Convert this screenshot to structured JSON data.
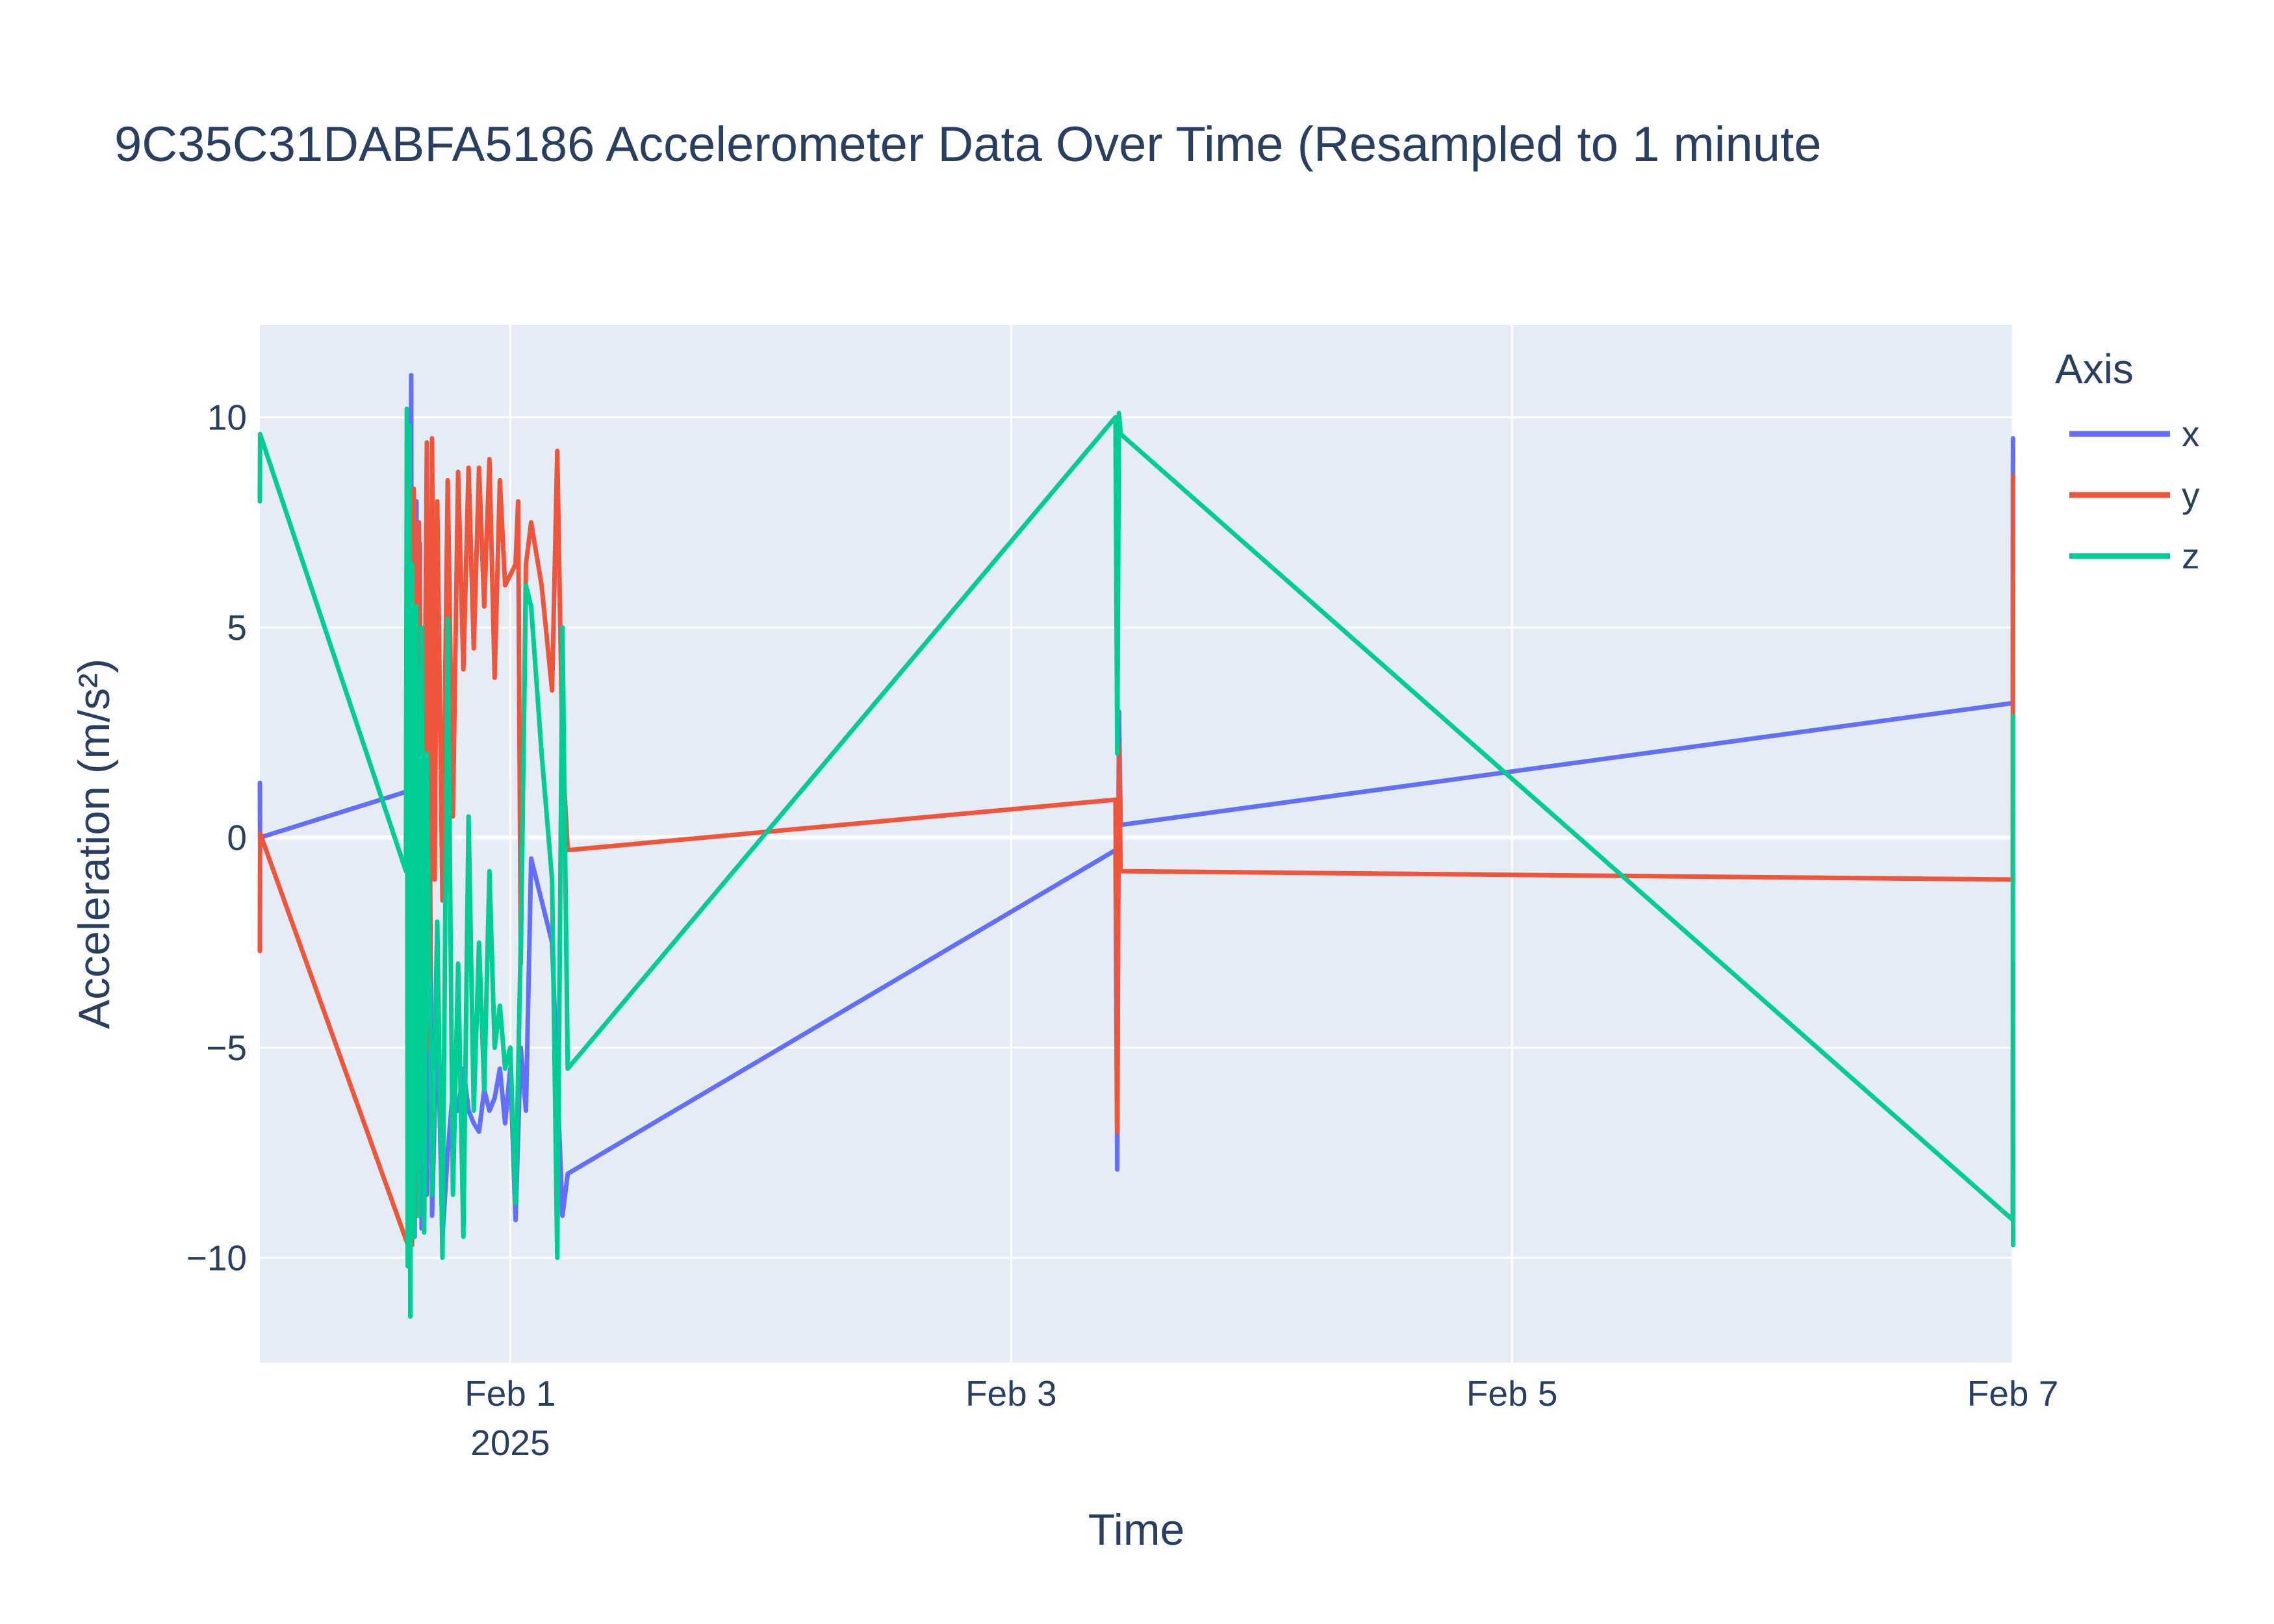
{
  "chart_data": {
    "type": "line",
    "title": "9C35C31DABFA5186 Accelerometer Data Over Time (Resampled to 1 minute",
    "xlabel": "Time",
    "ylabel": "Acceleration (m/s²)",
    "xlim": [
      "2025-01-31T00:00",
      "2025-02-07T00:00"
    ],
    "ylim": [
      -12.5,
      12.2
    ],
    "grid": true,
    "plot_background": "#e5ecf6",
    "x_ticks": [
      {
        "value": "2025-02-01T00:00",
        "label": "Feb 1",
        "sublabel": "2025"
      },
      {
        "value": "2025-02-03T00:00",
        "label": "Feb 3",
        "sublabel": ""
      },
      {
        "value": "2025-02-05T00:00",
        "label": "Feb 5",
        "sublabel": ""
      },
      {
        "value": "2025-02-07T00:00",
        "label": "Feb 7",
        "sublabel": ""
      }
    ],
    "y_ticks": [
      {
        "value": 10,
        "label": "10"
      },
      {
        "value": 5,
        "label": "5"
      },
      {
        "value": 0,
        "label": "0"
      },
      {
        "value": -5,
        "label": "−5"
      },
      {
        "value": -10,
        "label": "−10"
      }
    ],
    "legend": {
      "title": "Axis",
      "position": "right"
    },
    "series": [
      {
        "name": "x",
        "color": "#636efa",
        "points": [
          [
            "2025-01-31T00:00",
            1.3
          ],
          [
            "2025-01-31T00:01",
            0.0
          ],
          [
            "2025-01-31T14:10",
            1.1
          ],
          [
            "2025-01-31T14:15",
            8.2
          ],
          [
            "2025-01-31T14:20",
            -9.5
          ],
          [
            "2025-01-31T14:30",
            11.0
          ],
          [
            "2025-01-31T14:35",
            -9.0
          ],
          [
            "2025-01-31T14:40",
            6.0
          ],
          [
            "2025-01-31T14:50",
            -9.5
          ],
          [
            "2025-01-31T15:00",
            8.0
          ],
          [
            "2025-01-31T15:10",
            -9.0
          ],
          [
            "2025-01-31T15:20",
            7.0
          ],
          [
            "2025-01-31T15:30",
            -9.3
          ],
          [
            "2025-01-31T15:45",
            4.0
          ],
          [
            "2025-01-31T16:00",
            -8.5
          ],
          [
            "2025-01-31T16:15",
            2.0
          ],
          [
            "2025-01-31T16:30",
            -9.0
          ],
          [
            "2025-01-31T17:00",
            -4.0
          ],
          [
            "2025-01-31T17:30",
            -9.5
          ],
          [
            "2025-01-31T18:00",
            -7.5
          ],
          [
            "2025-01-31T18:30",
            -6.0
          ],
          [
            "2025-01-31T19:00",
            -6.5
          ],
          [
            "2025-01-31T19:30",
            -5.5
          ],
          [
            "2025-01-31T20:00",
            -6.5
          ],
          [
            "2025-01-31T20:30",
            -6.8
          ],
          [
            "2025-01-31T21:00",
            -7.0
          ],
          [
            "2025-01-31T21:30",
            -6.0
          ],
          [
            "2025-01-31T22:00",
            -6.5
          ],
          [
            "2025-01-31T22:30",
            -6.2
          ],
          [
            "2025-01-31T23:00",
            -5.5
          ],
          [
            "2025-01-31T23:30",
            -6.8
          ],
          [
            "2025-02-01T00:00",
            -5.5
          ],
          [
            "2025-02-01T00:30",
            -9.1
          ],
          [
            "2025-02-01T01:00",
            -5.0
          ],
          [
            "2025-02-01T01:30",
            -6.5
          ],
          [
            "2025-02-01T02:00",
            -0.5
          ],
          [
            "2025-02-01T03:00",
            -1.5
          ],
          [
            "2025-02-01T04:00",
            -2.5
          ],
          [
            "2025-02-01T05:00",
            -9.0
          ],
          [
            "2025-02-01T05:30",
            -8.0
          ],
          [
            "2025-02-03T10:00",
            -0.3
          ],
          [
            "2025-02-03T10:10",
            -7.9
          ],
          [
            "2025-02-03T10:20",
            3.0
          ],
          [
            "2025-02-03T10:30",
            0.3
          ],
          [
            "2025-02-07T00:00",
            3.2
          ],
          [
            "2025-02-07T00:01",
            9.5
          ]
        ]
      },
      {
        "name": "y",
        "color": "#ef553b",
        "points": [
          [
            "2025-01-31T00:00",
            -2.7
          ],
          [
            "2025-01-31T00:01",
            0.1
          ],
          [
            "2025-01-31T14:20",
            -9.8
          ],
          [
            "2025-01-31T14:25",
            8.0
          ],
          [
            "2025-01-31T14:35",
            -9.7
          ],
          [
            "2025-01-31T14:45",
            8.3
          ],
          [
            "2025-01-31T15:00",
            -9.0
          ],
          [
            "2025-01-31T15:15",
            7.5
          ],
          [
            "2025-01-31T15:30",
            -7.0
          ],
          [
            "2025-01-31T16:00",
            9.4
          ],
          [
            "2025-01-31T16:15",
            -5.0
          ],
          [
            "2025-01-31T16:30",
            9.5
          ],
          [
            "2025-01-31T16:45",
            -1.0
          ],
          [
            "2025-01-31T17:00",
            8.0
          ],
          [
            "2025-01-31T17:30",
            -1.5
          ],
          [
            "2025-01-31T18:00",
            8.5
          ],
          [
            "2025-01-31T18:30",
            0.5
          ],
          [
            "2025-01-31T19:00",
            8.7
          ],
          [
            "2025-01-31T19:30",
            4.0
          ],
          [
            "2025-01-31T20:00",
            8.8
          ],
          [
            "2025-01-31T20:30",
            4.5
          ],
          [
            "2025-01-31T21:00",
            8.8
          ],
          [
            "2025-01-31T21:30",
            5.5
          ],
          [
            "2025-01-31T22:00",
            9.0
          ],
          [
            "2025-01-31T22:30",
            3.8
          ],
          [
            "2025-01-31T23:00",
            8.5
          ],
          [
            "2025-01-31T23:30",
            6.0
          ],
          [
            "2025-02-01T00:30",
            6.5
          ],
          [
            "2025-02-01T00:45",
            8.0
          ],
          [
            "2025-02-01T01:00",
            -3.0
          ],
          [
            "2025-02-01T01:30",
            6.5
          ],
          [
            "2025-02-01T02:00",
            7.5
          ],
          [
            "2025-02-01T03:00",
            6.0
          ],
          [
            "2025-02-01T04:00",
            3.5
          ],
          [
            "2025-02-01T04:30",
            9.2
          ],
          [
            "2025-02-01T05:00",
            2.0
          ],
          [
            "2025-02-01T05:30",
            -0.3
          ],
          [
            "2025-02-03T10:00",
            0.9
          ],
          [
            "2025-02-03T10:10",
            -7.0
          ],
          [
            "2025-02-03T10:20",
            2.2
          ],
          [
            "2025-02-03T10:30",
            -0.8
          ],
          [
            "2025-02-07T00:00",
            -1.0
          ],
          [
            "2025-02-07T00:01",
            8.6
          ]
        ]
      },
      {
        "name": "z",
        "color": "#00cc96",
        "points": [
          [
            "2025-01-31T00:00",
            8.0
          ],
          [
            "2025-01-31T00:01",
            9.6
          ],
          [
            "2025-01-31T14:00",
            -0.8
          ],
          [
            "2025-01-31T14:05",
            10.2
          ],
          [
            "2025-01-31T14:10",
            -10.2
          ],
          [
            "2025-01-31T14:20",
            9.8
          ],
          [
            "2025-01-31T14:25",
            -11.4
          ],
          [
            "2025-01-31T14:35",
            6.5
          ],
          [
            "2025-01-31T14:45",
            -9.5
          ],
          [
            "2025-01-31T15:00",
            5.5
          ],
          [
            "2025-01-31T15:15",
            -9.0
          ],
          [
            "2025-01-31T15:30",
            5.0
          ],
          [
            "2025-01-31T15:45",
            -9.4
          ],
          [
            "2025-01-31T16:00",
            2.0
          ],
          [
            "2025-01-31T16:30",
            -8.5
          ],
          [
            "2025-01-31T17:00",
            -2.0
          ],
          [
            "2025-01-31T17:30",
            -10.0
          ],
          [
            "2025-01-31T18:00",
            5.2
          ],
          [
            "2025-01-31T18:30",
            -8.5
          ],
          [
            "2025-01-31T19:00",
            -3.0
          ],
          [
            "2025-01-31T19:30",
            -9.5
          ],
          [
            "2025-01-31T20:00",
            0.5
          ],
          [
            "2025-01-31T20:30",
            -6.5
          ],
          [
            "2025-01-31T21:00",
            -2.5
          ],
          [
            "2025-01-31T21:30",
            -6.0
          ],
          [
            "2025-01-31T22:00",
            -0.8
          ],
          [
            "2025-01-31T22:30",
            -5.0
          ],
          [
            "2025-01-31T23:00",
            -4.0
          ],
          [
            "2025-01-31T23:30",
            -5.5
          ],
          [
            "2025-02-01T00:00",
            -5.0
          ],
          [
            "2025-02-01T00:30",
            -8.7
          ],
          [
            "2025-02-01T01:00",
            -2.5
          ],
          [
            "2025-02-01T01:30",
            6.0
          ],
          [
            "2025-02-01T02:00",
            5.5
          ],
          [
            "2025-02-01T03:00",
            2.0
          ],
          [
            "2025-02-01T04:00",
            -1.0
          ],
          [
            "2025-02-01T04:30",
            -10.0
          ],
          [
            "2025-02-01T05:00",
            5.0
          ],
          [
            "2025-02-01T05:30",
            -5.5
          ],
          [
            "2025-02-03T10:00",
            10.0
          ],
          [
            "2025-02-03T10:10",
            2.0
          ],
          [
            "2025-02-03T10:20",
            10.1
          ],
          [
            "2025-02-03T10:30",
            9.6
          ],
          [
            "2025-02-07T00:00",
            -9.1
          ],
          [
            "2025-02-07T00:01",
            2.9
          ],
          [
            "2025-02-07T00:02",
            -9.7
          ]
        ]
      }
    ]
  }
}
